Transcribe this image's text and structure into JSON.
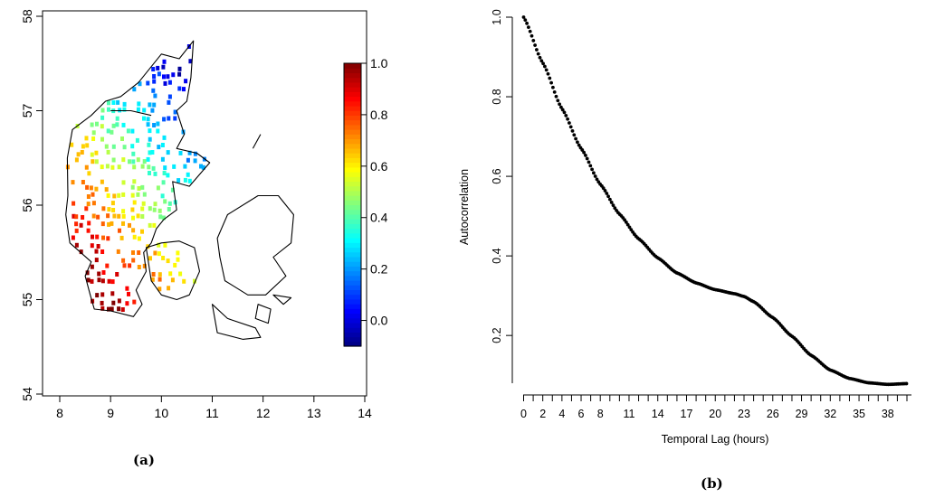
{
  "captions": {
    "a": "(a)",
    "b": "(b)"
  },
  "chart_data": [
    {
      "type": "heatmap",
      "title": "",
      "xlabel": "",
      "ylabel": "",
      "xlim": [
        8,
        14
      ],
      "ylim": [
        54,
        58
      ],
      "x_ticks": [
        "8",
        "9",
        "10",
        "11",
        "12",
        "13",
        "14"
      ],
      "y_ticks": [
        "54",
        "55",
        "56",
        "57",
        "58"
      ],
      "colorbar": {
        "min": -0.1,
        "max": 1.0,
        "ticks": [
          "0.0",
          "0.2",
          "0.4",
          "0.6",
          "0.8",
          "1.0"
        ],
        "colors": [
          "#00007F",
          "#0000FF",
          "#007FFF",
          "#00FFFF",
          "#7FFF7F",
          "#FFFF00",
          "#FF7F00",
          "#FF0000",
          "#7F0000"
        ]
      },
      "grid": false,
      "legend": "right",
      "gradient_endpoints": {
        "value_1_0_at": [
          8.8,
          55.0
        ],
        "value_0_0_at": [
          10.5,
          57.4
        ]
      },
      "islands": [
        {
          "name": "Funen",
          "lon_center": 10.35,
          "lat_center": 55.3
        },
        {
          "name": "Zealand",
          "lon_center": 11.9,
          "lat_center": 55.5
        }
      ]
    },
    {
      "type": "scatter",
      "title": "",
      "xlabel": "Temporal Lag (hours)",
      "ylabel": "Autocorrelation",
      "xlim": [
        0,
        40
      ],
      "ylim": [
        0.08,
        1.0
      ],
      "x_ticks": [
        "0",
        "2",
        "4",
        "6",
        "8",
        "11",
        "14",
        "17",
        "20",
        "23",
        "26",
        "29",
        "32",
        "35",
        "38"
      ],
      "y_ticks": [
        "0.2",
        "0.4",
        "0.6",
        "0.8",
        "1.0"
      ],
      "grid": false,
      "series": [
        {
          "x": [
            0,
            2,
            4,
            6,
            8,
            10,
            12,
            14,
            16,
            18,
            20,
            22,
            23,
            24,
            26,
            28,
            30,
            32,
            34,
            36,
            38,
            40
          ],
          "y": [
            1.0,
            0.885,
            0.77,
            0.67,
            0.58,
            0.505,
            0.443,
            0.395,
            0.357,
            0.332,
            0.315,
            0.305,
            0.298,
            0.285,
            0.245,
            0.198,
            0.15,
            0.113,
            0.092,
            0.081,
            0.077,
            0.079
          ]
        }
      ]
    }
  ]
}
